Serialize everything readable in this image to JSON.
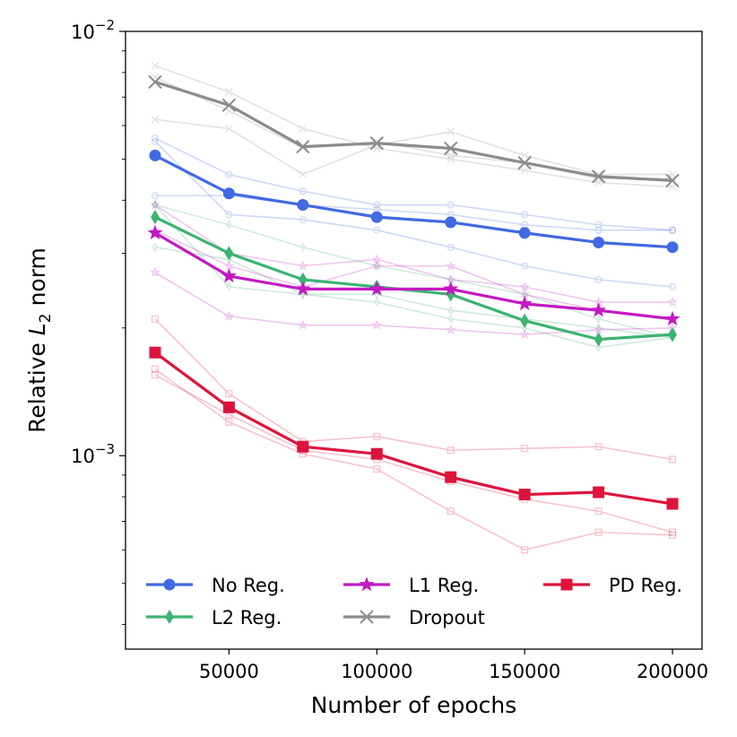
{
  "chart_data": {
    "type": "line",
    "yscale": "log",
    "xlabel": "Number of epochs",
    "ylabel_prefix": "Relative ",
    "ylabel_var": "L",
    "ylabel_sub": "2",
    "ylabel_suffix": " norm",
    "xlim": [
      15000,
      210000
    ],
    "ylim": [
      0.00035,
      0.01
    ],
    "x_ticks": [
      50000,
      100000,
      150000,
      200000
    ],
    "x_tick_labels": [
      "50000",
      "100000",
      "150000",
      "200000"
    ],
    "y_ticks": [
      {
        "value": 0.001,
        "base": "10",
        "exp": "−3"
      },
      {
        "value": 0.01,
        "base": "10",
        "exp": "−2"
      }
    ],
    "x": [
      25000,
      50000,
      75000,
      100000,
      125000,
      150000,
      175000,
      200000
    ],
    "series": [
      {
        "name": "No Reg.",
        "color": "#4169e1",
        "marker": "circle",
        "mean": [
          0.0051,
          0.00415,
          0.0039,
          0.00365,
          0.00355,
          0.00335,
          0.00318,
          0.0031
        ],
        "runs": [
          [
            0.0056,
            0.0046,
            0.0042,
            0.0039,
            0.0039,
            0.0037,
            0.0035,
            0.0034
          ],
          [
            0.0055,
            0.0037,
            0.0036,
            0.0034,
            0.0031,
            0.0028,
            0.0026,
            0.0025
          ],
          [
            0.0041,
            0.0041,
            0.0039,
            0.0038,
            0.0037,
            0.0035,
            0.0034,
            0.0034
          ]
        ]
      },
      {
        "name": "L2 Reg.",
        "color": "#3cb371",
        "marker": "diamond",
        "mean": [
          0.00365,
          0.003,
          0.0026,
          0.0025,
          0.0024,
          0.00208,
          0.00188,
          0.00193
        ],
        "runs": [
          [
            0.0039,
            0.0035,
            0.0031,
            0.0028,
            0.0026,
            0.0024,
            0.0021,
            0.0019
          ],
          [
            0.0031,
            0.0029,
            0.0024,
            0.0023,
            0.0021,
            0.002,
            0.0018,
            0.0019
          ],
          [
            0.0039,
            0.0025,
            0.0024,
            0.0024,
            0.0022,
            0.0021,
            0.002,
            0.0019
          ]
        ]
      },
      {
        "name": "L1 Reg.",
        "color": "#c21ac2",
        "marker": "star",
        "mean": [
          0.00335,
          0.00265,
          0.00247,
          0.00247,
          0.00247,
          0.00228,
          0.0022,
          0.0021
        ],
        "runs": [
          [
            0.0039,
            0.003,
            0.0028,
            0.0029,
            0.0026,
            0.0025,
            0.0023,
            0.0023
          ],
          [
            0.0027,
            0.00213,
            0.00203,
            0.00203,
            0.00198,
            0.00193,
            0.00198,
            0.002
          ],
          [
            0.0034,
            0.0028,
            0.0025,
            0.0028,
            0.0028,
            0.0024,
            0.0022,
            0.0021
          ]
        ]
      },
      {
        "name": "Dropout",
        "color": "#8c8c8c",
        "marker": "x",
        "mean": [
          0.0076,
          0.0067,
          0.00535,
          0.00545,
          0.0053,
          0.0049,
          0.00455,
          0.00445
        ],
        "runs": [
          [
            0.0083,
            0.0072,
            0.0059,
            0.0053,
            0.005,
            0.0047,
            0.0044,
            0.0043
          ],
          [
            0.0062,
            0.0059,
            0.0046,
            0.0054,
            0.0058,
            0.0051,
            0.0046,
            0.0046
          ],
          [
            0.0078,
            0.0065,
            0.0053,
            0.0055,
            0.0051,
            0.0049,
            0.0045,
            0.0045
          ]
        ]
      },
      {
        "name": "PD Reg.",
        "color": "#dc143c",
        "marker": "square",
        "mean": [
          0.00175,
          0.0013,
          0.00105,
          0.00101,
          0.00089,
          0.00081,
          0.00082,
          0.00077
        ],
        "runs": [
          [
            0.0021,
            0.0014,
            0.00108,
            0.00111,
            0.00103,
            0.00104,
            0.00105,
            0.00098
          ],
          [
            0.0016,
            0.0012,
            0.00101,
            0.00093,
            0.00074,
            0.0006,
            0.00066,
            0.00065
          ],
          [
            0.00155,
            0.00125,
            0.00103,
            0.00098,
            0.00087,
            0.00079,
            0.00074,
            0.00066
          ]
        ]
      }
    ],
    "legend": {
      "location": "lower center",
      "columns": 3,
      "order": [
        "No Reg.",
        "L1 Reg.",
        "PD Reg.",
        "L2 Reg.",
        "Dropout"
      ]
    }
  }
}
